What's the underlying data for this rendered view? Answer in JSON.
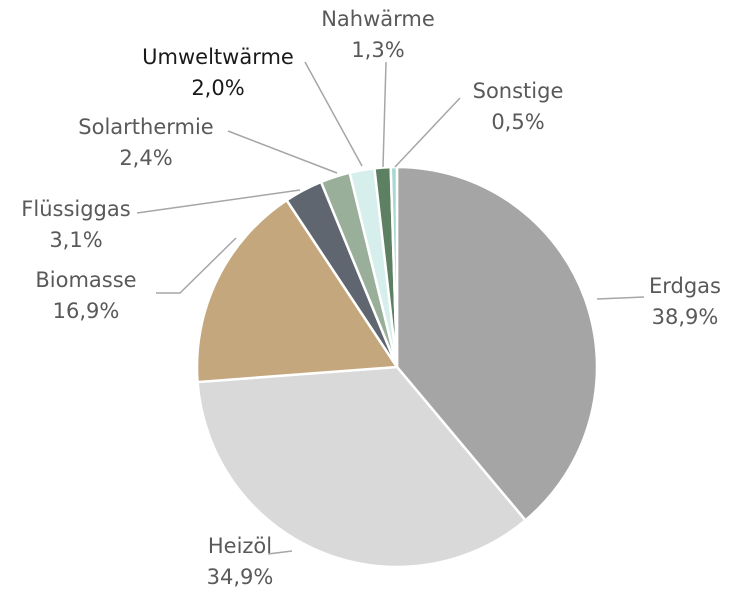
{
  "chart_data": {
    "type": "pie",
    "categories": [
      "Erdgas",
      "Heizöl",
      "Biomasse",
      "Flüssiggas",
      "Solarthermie",
      "Umweltwärme",
      "Nahwärme",
      "Sonstige"
    ],
    "values": [
      38.9,
      34.9,
      16.9,
      3.1,
      2.4,
      2.0,
      1.3,
      0.5
    ],
    "value_labels": [
      "38,9%",
      "34,9%",
      "16,9%",
      "3,1%",
      "2,4%",
      "2,0%",
      "1,3%",
      "0,5%"
    ],
    "colors": [
      "#a5a5a5",
      "#d9d9d9",
      "#c4a77d",
      "#5f6670",
      "#9aaf9a",
      "#d6eeec",
      "#5d7f62",
      "#a8d8d0"
    ]
  }
}
